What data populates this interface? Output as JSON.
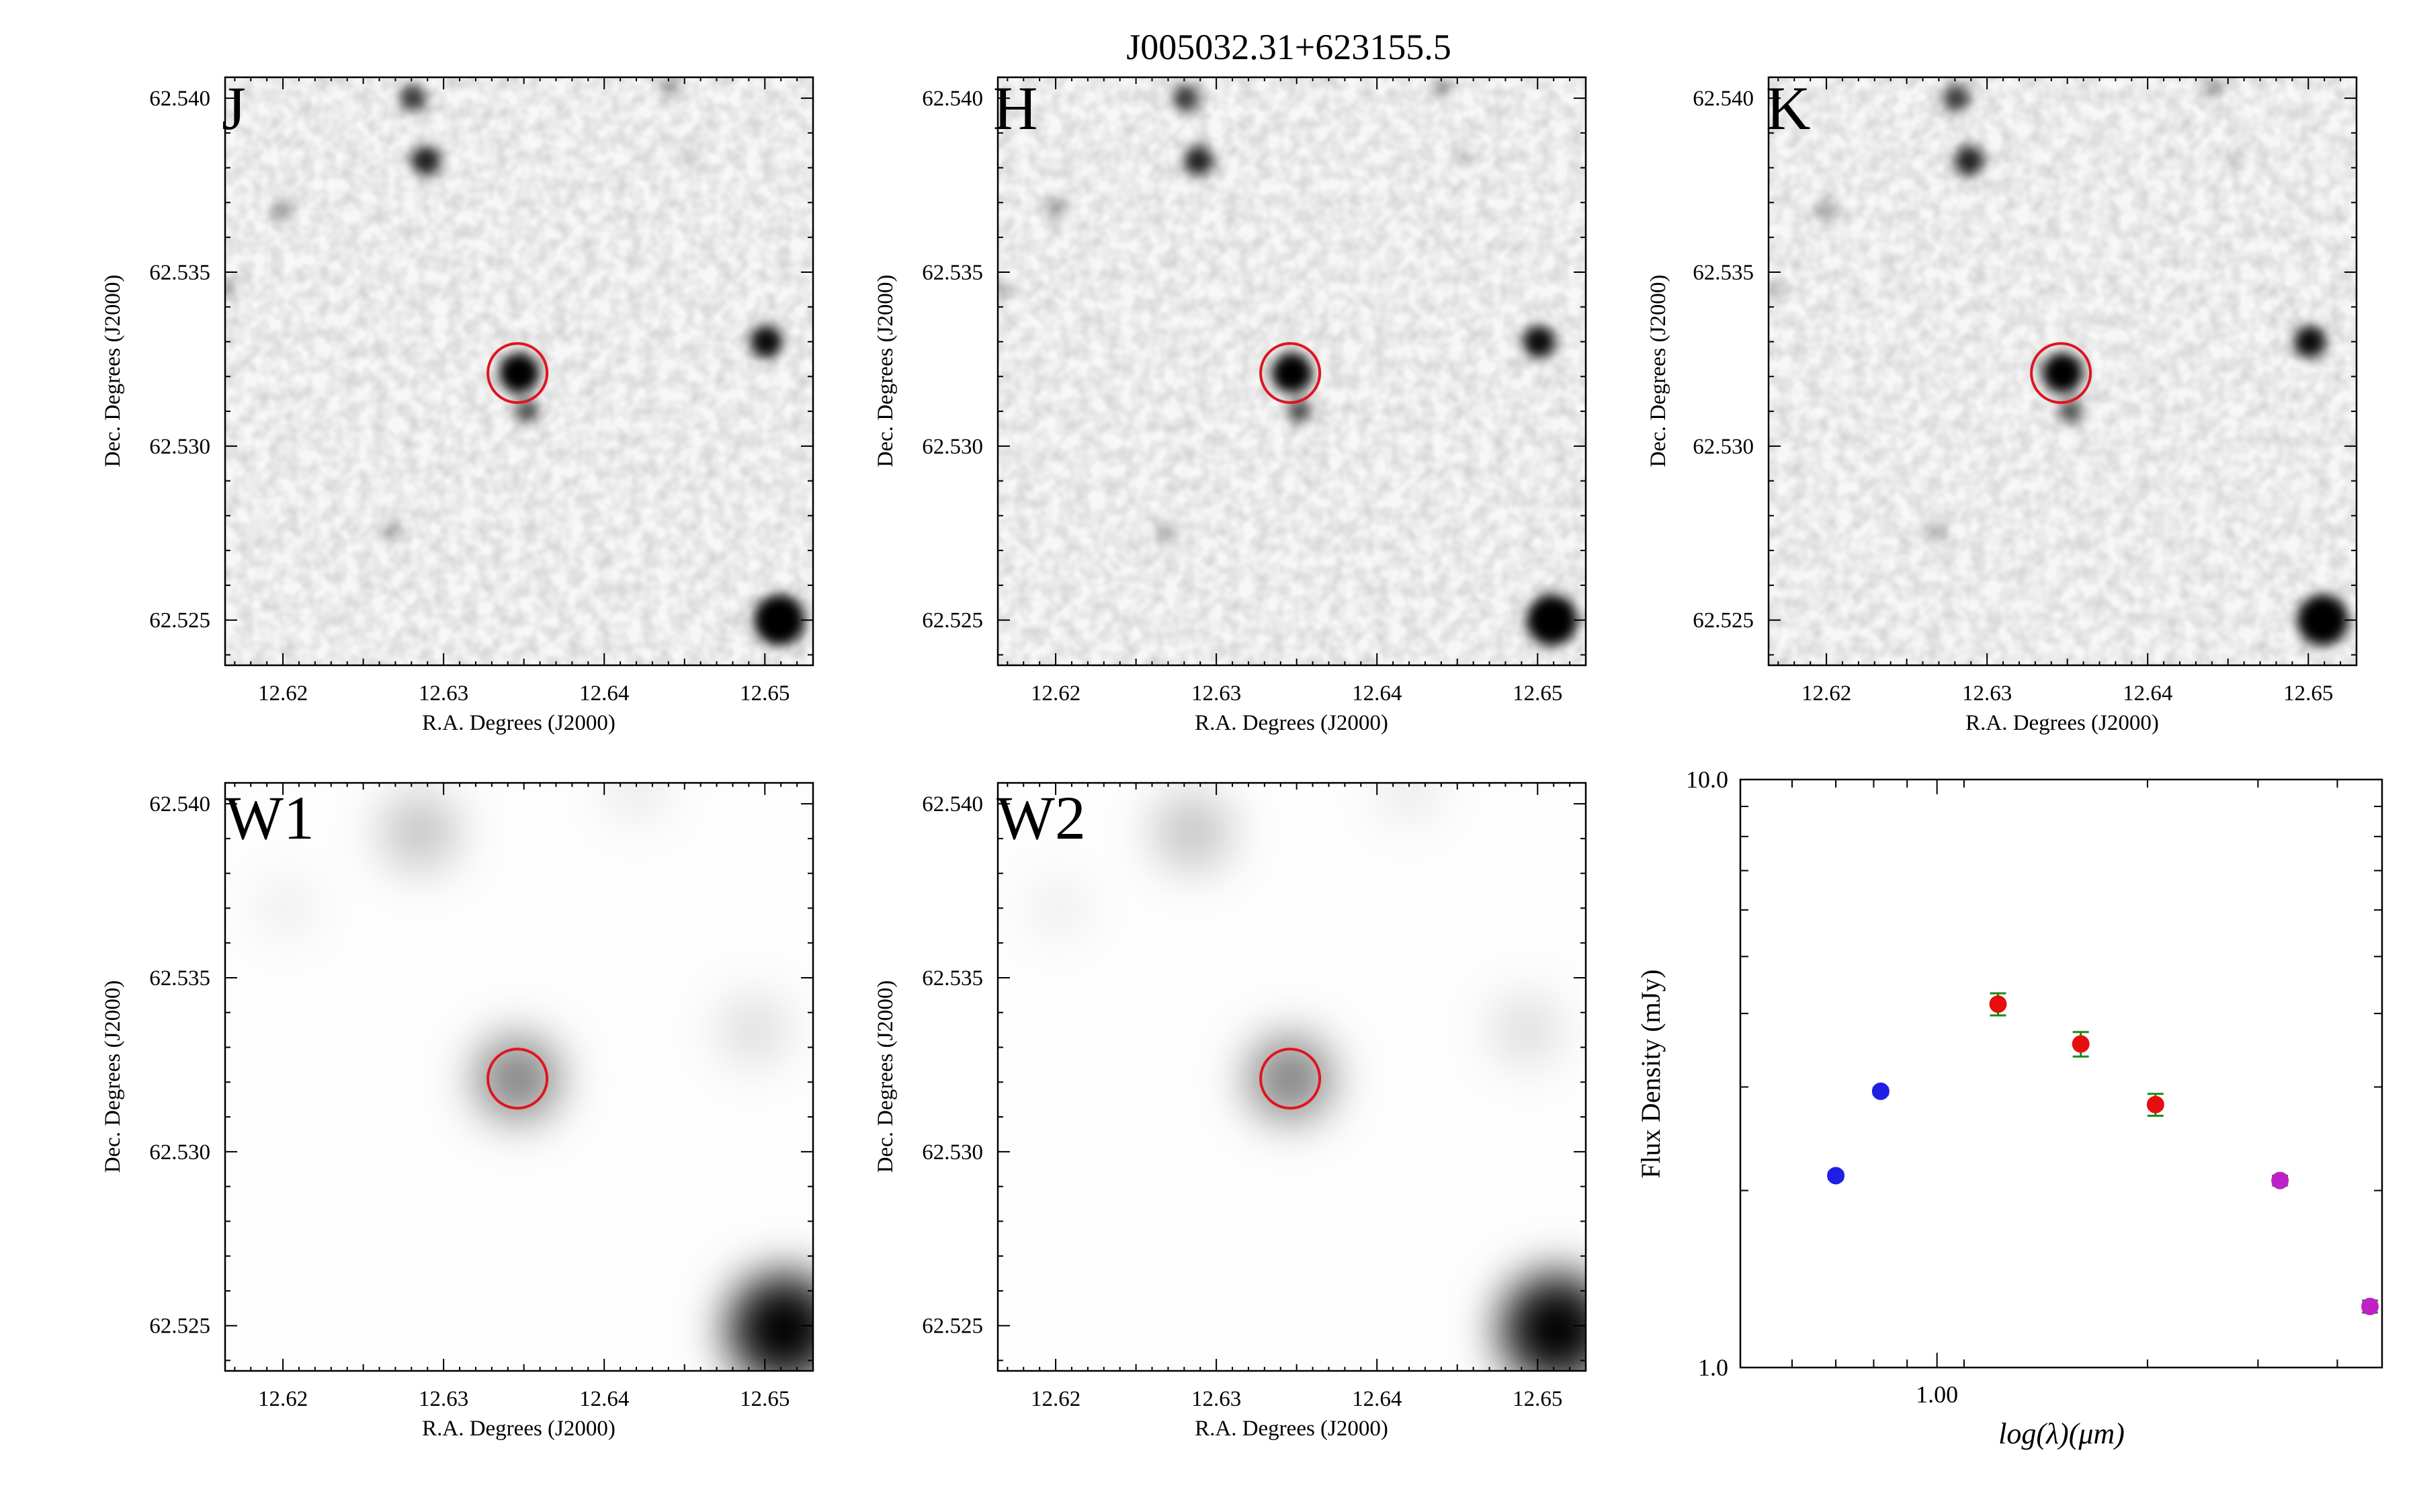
{
  "figure": {
    "title": "J005032.31+623155.5"
  },
  "colors": {
    "band_label": "#ff00ff",
    "aperture": "#e0141e",
    "frame": "#000000",
    "errorbar": "#1a8a1a"
  },
  "panels": [
    {
      "label": "J",
      "xlabel": "R.A. Degrees (J2000)",
      "ylabel": "Dec. Degrees (J2000)"
    },
    {
      "label": "H",
      "xlabel": "R.A. Degrees (J2000)",
      "ylabel": "Dec. Degrees (J2000)"
    },
    {
      "label": "K",
      "xlabel": "R.A. Degrees (J2000)",
      "ylabel": "Dec. Degrees (J2000)"
    },
    {
      "label": "W1",
      "xlabel": "R.A. Degrees (J2000)",
      "ylabel": "Dec. Degrees (J2000)"
    },
    {
      "label": "W2",
      "xlabel": "R.A. Degrees (J2000)",
      "ylabel": "Dec. Degrees (J2000)"
    }
  ],
  "image_axes": {
    "x_range": [
      12.6164,
      12.653
    ],
    "y_range": [
      62.5237,
      62.5406
    ],
    "x_ticks": [
      "12.62",
      "12.63",
      "12.64",
      "12.65"
    ],
    "y_ticks": [
      "62.525",
      "62.530",
      "62.535",
      "62.540"
    ],
    "target": {
      "ra": 12.6346,
      "dec": 62.5321
    }
  },
  "chart_data": {
    "type": "scatter",
    "xlabel": "log(λ)(μm)",
    "ylabel": "Flux Density (mJy)",
    "x_scale": "log",
    "y_scale": "log",
    "xlim": [
      0.5,
      4.8
    ],
    "ylim": [
      1.0,
      10.0
    ],
    "x_ticks": [
      "1.00"
    ],
    "y_ticks": [
      "1.0",
      "10.0"
    ],
    "series": [
      {
        "color": "#1f1fe6",
        "points": [
          {
            "x": 0.7,
            "y": 2.12,
            "err": 0.03
          },
          {
            "x": 0.82,
            "y": 2.95,
            "err": 0.04
          }
        ]
      },
      {
        "color": "#e60e0e",
        "points": [
          {
            "x": 1.24,
            "y": 4.15,
            "err": 0.18
          },
          {
            "x": 1.66,
            "y": 3.55,
            "err": 0.17
          },
          {
            "x": 2.16,
            "y": 2.8,
            "err": 0.12
          }
        ]
      },
      {
        "color": "#c020c8",
        "points": [
          {
            "x": 3.35,
            "y": 2.08,
            "err": 0.04
          },
          {
            "x": 4.6,
            "y": 1.27,
            "err": 0.03
          }
        ]
      }
    ]
  }
}
